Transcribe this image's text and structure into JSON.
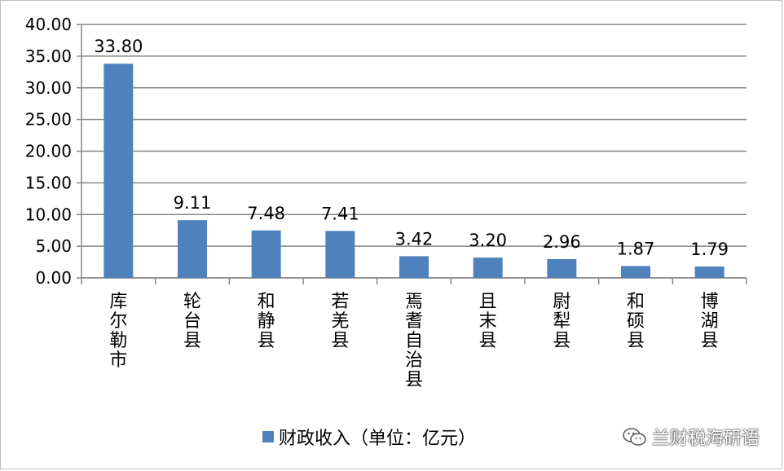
{
  "chart_data": {
    "type": "bar",
    "categories": [
      "库尔勒市",
      "轮台县",
      "和静县",
      "若羌县",
      "焉耆自治县",
      "且末县",
      "尉犁县",
      "和硕县",
      "博湖县"
    ],
    "series": [
      {
        "name": "财政收入（单位：亿元）",
        "values": [
          33.8,
          9.11,
          7.48,
          7.41,
          3.42,
          3.2,
          2.96,
          1.87,
          1.79
        ],
        "color": "#4f81bd"
      }
    ],
    "data_labels": [
      "33.80",
      "9.11",
      "7.48",
      "7.41",
      "3.42",
      "3.20",
      "2.96",
      "1.87",
      "1.79"
    ],
    "ylim": [
      0,
      40
    ],
    "yticks": [
      "0.00",
      "5.00",
      "10.00",
      "15.00",
      "20.00",
      "25.00",
      "30.00",
      "35.00",
      "40.00"
    ],
    "grid": true,
    "legend_position": "bottom"
  },
  "legend": {
    "label": "财政收入（单位：亿元）"
  },
  "watermark": {
    "text": "兰财税海研语",
    "icon": "wechat-icon"
  }
}
